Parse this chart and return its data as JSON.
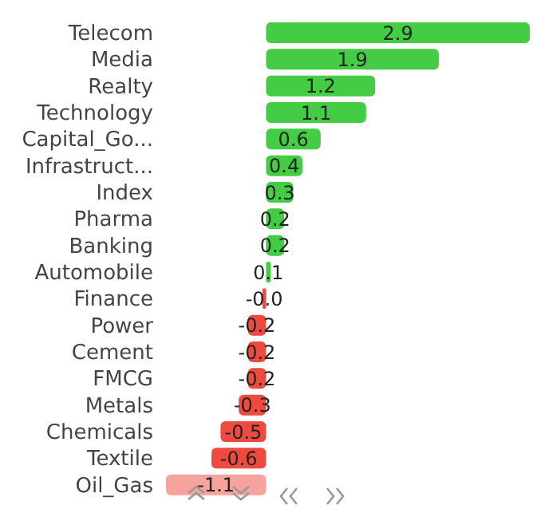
{
  "chart_data": {
    "type": "bar",
    "orientation": "horizontal",
    "categories": [
      "Telecom",
      "Media",
      "Realty",
      "Technology",
      "Capital_Go...",
      "Infrastruct...",
      "Index",
      "Pharma",
      "Banking",
      "Automobile",
      "Finance",
      "Power",
      "Cement",
      "FMCG",
      "Metals",
      "Chemicals",
      "Textile",
      "Oil_Gas"
    ],
    "values": [
      2.9,
      1.9,
      1.2,
      1.1,
      0.6,
      0.4,
      0.3,
      0.2,
      0.2,
      0.05,
      -0.04,
      -0.2,
      -0.2,
      -0.2,
      -0.3,
      -0.5,
      -0.6,
      -1.1
    ],
    "value_labels": [
      "2.9",
      "1.9",
      "1.2",
      "1.1",
      "0.6",
      "0.4",
      "0.3",
      "0.2",
      "0.2",
      "0.1",
      "-0.0",
      "-0.2",
      "-0.2",
      "-0.2",
      "-0.3",
      "-0.5",
      "-0.6",
      "-1.1"
    ],
    "colors": [
      "#44cc44",
      "#44cc44",
      "#44cc44",
      "#44cc44",
      "#44cc44",
      "#44cc44",
      "#44cc44",
      "#44cc44",
      "#44cc44",
      "#44cc44",
      "#ee4a40",
      "#ee4a40",
      "#ee4a40",
      "#ee4a40",
      "#ee4a40",
      "#ee4a40",
      "#ee4a40",
      "#f5a39c"
    ],
    "grid": false,
    "legend": false
  }
}
